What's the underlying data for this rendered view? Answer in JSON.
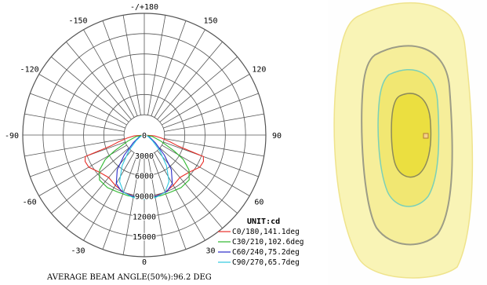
{
  "chart_data": [
    {
      "type": "polar",
      "unit_label": "UNIT:cd",
      "angle_labels": [
        {
          "angle": 180,
          "text": "-/+180"
        },
        {
          "angle": -150,
          "text": "-150"
        },
        {
          "angle": 150,
          "text": "150"
        },
        {
          "angle": -120,
          "text": "-120"
        },
        {
          "angle": 120,
          "text": "120"
        },
        {
          "angle": -90,
          "text": "-90"
        },
        {
          "angle": 90,
          "text": "90"
        },
        {
          "angle": -60,
          "text": "-60"
        },
        {
          "angle": 60,
          "text": "60"
        },
        {
          "angle": -30,
          "text": "-30"
        },
        {
          "angle": 30,
          "text": "30"
        },
        {
          "angle": 0,
          "text": "0"
        }
      ],
      "radial_ticks": [
        0,
        3000,
        6000,
        9000,
        12000,
        15000
      ],
      "radial_max": 18000,
      "series": [
        {
          "name": "C0/180,141.1deg",
          "color": "#e8302a",
          "points": [
            [
              -90,
              0
            ],
            [
              -85,
              1500
            ],
            [
              -80,
              2600
            ],
            [
              -75,
              4000
            ],
            [
              -72,
              5200
            ],
            [
              -70,
              9300
            ],
            [
              -66,
              9600
            ],
            [
              -60,
              9500
            ],
            [
              -50,
              8600
            ],
            [
              -40,
              8200
            ],
            [
              -30,
              8600
            ],
            [
              -20,
              9000
            ],
            [
              -10,
              9200
            ],
            [
              0,
              9300
            ],
            [
              10,
              9200
            ],
            [
              20,
              9000
            ],
            [
              30,
              8600
            ],
            [
              40,
              8200
            ],
            [
              50,
              8600
            ],
            [
              60,
              9500
            ],
            [
              66,
              9600
            ],
            [
              70,
              9300
            ],
            [
              72,
              5200
            ],
            [
              75,
              4000
            ],
            [
              80,
              2600
            ],
            [
              85,
              1500
            ],
            [
              90,
              0
            ]
          ]
        },
        {
          "name": "C30/210,102.6deg",
          "color": "#2db82d",
          "points": [
            [
              -90,
              0
            ],
            [
              -80,
              1200
            ],
            [
              -70,
              2600
            ],
            [
              -62,
              5000
            ],
            [
              -58,
              6800
            ],
            [
              -52,
              8400
            ],
            [
              -45,
              9400
            ],
            [
              -35,
              9500
            ],
            [
              -25,
              9300
            ],
            [
              -15,
              9300
            ],
            [
              0,
              9400
            ],
            [
              15,
              9300
            ],
            [
              25,
              9300
            ],
            [
              35,
              9500
            ],
            [
              45,
              9400
            ],
            [
              52,
              8400
            ],
            [
              58,
              6800
            ],
            [
              62,
              5000
            ],
            [
              70,
              2600
            ],
            [
              80,
              1200
            ],
            [
              90,
              0
            ]
          ]
        },
        {
          "name": "C60/240,75.2deg",
          "color": "#2a2ac8",
          "points": [
            [
              -90,
              0
            ],
            [
              -70,
              800
            ],
            [
              -55,
              2000
            ],
            [
              -45,
              4200
            ],
            [
              -38,
              6500
            ],
            [
              -30,
              8300
            ],
            [
              -22,
              9000
            ],
            [
              -12,
              9200
            ],
            [
              0,
              9300
            ],
            [
              12,
              9200
            ],
            [
              22,
              9000
            ],
            [
              30,
              8300
            ],
            [
              38,
              6500
            ],
            [
              45,
              4200
            ],
            [
              55,
              2000
            ],
            [
              70,
              800
            ],
            [
              90,
              0
            ]
          ]
        },
        {
          "name": "C90/270,65.7deg",
          "color": "#2ec8e0",
          "points": [
            [
              -90,
              0
            ],
            [
              -70,
              600
            ],
            [
              -55,
              1500
            ],
            [
              -45,
              3200
            ],
            [
              -36,
              5600
            ],
            [
              -28,
              7800
            ],
            [
              -20,
              9000
            ],
            [
              -10,
              9400
            ],
            [
              0,
              9500
            ],
            [
              10,
              9400
            ],
            [
              20,
              9000
            ],
            [
              28,
              7800
            ],
            [
              36,
              5600
            ],
            [
              45,
              3200
            ],
            [
              55,
              1500
            ],
            [
              70,
              600
            ],
            [
              90,
              0
            ]
          ]
        }
      ],
      "caption": "AVERAGE BEAM ANGLE(50%):96.2 DEG"
    },
    {
      "type": "contour",
      "colors": [
        "#f7f2a8",
        "#f3ea86",
        "#efe46a",
        "#ebdc3c"
      ]
    }
  ]
}
